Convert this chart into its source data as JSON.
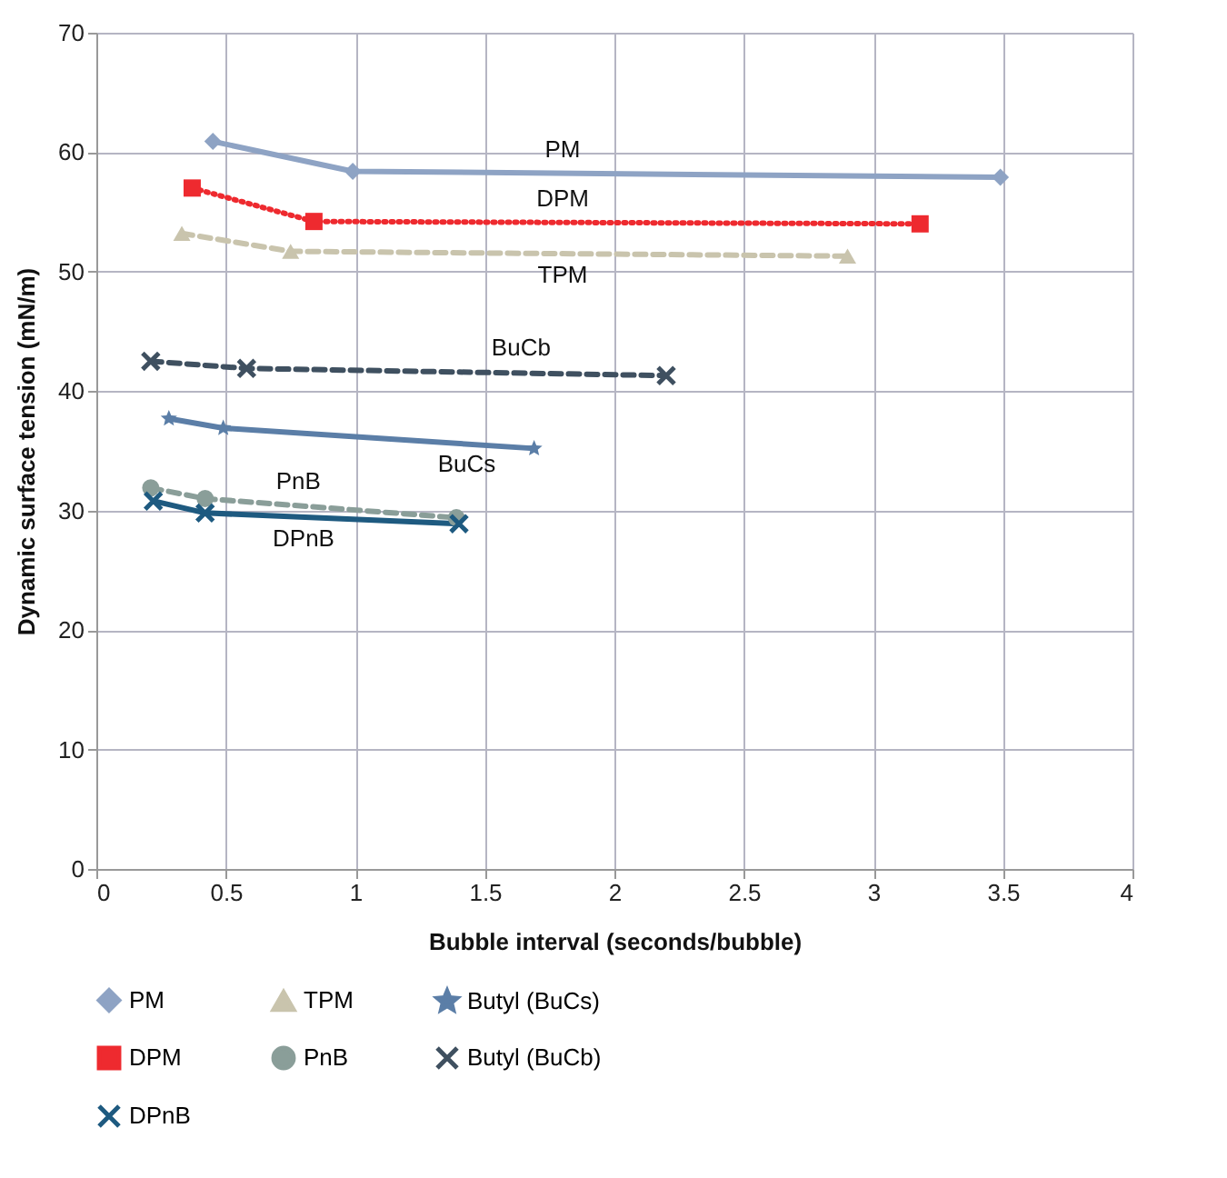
{
  "chart_data": {
    "type": "line",
    "xlabel": "Bubble interval (seconds/bubble)",
    "ylabel": "Dynamic surface tension (mN/m)",
    "xlim": [
      0,
      4
    ],
    "xticks": [
      0,
      0.5,
      1,
      1.5,
      2,
      2.5,
      3,
      3.5,
      4
    ],
    "ylim": [
      0,
      70
    ],
    "yticks": [
      0,
      10,
      20,
      30,
      40,
      50,
      60,
      70
    ],
    "grid": true,
    "legend": "bottom",
    "series": [
      {
        "name": "PM",
        "color": "#8ea3c4",
        "marker": "diamond",
        "line_style": "solid",
        "x": [
          0.45,
          0.99,
          3.49
        ],
        "values": [
          60.9,
          58.4,
          57.9
        ]
      },
      {
        "name": "TPM",
        "color": "#c9c4ad",
        "marker": "triangle",
        "line_style": "dashed",
        "x": [
          0.33,
          0.75,
          2.9
        ],
        "values": [
          53.2,
          51.7,
          51.3
        ]
      },
      {
        "name": "Butyl (BuCs)",
        "color": "#5b7ea7",
        "marker": "star",
        "line_style": "solid",
        "x": [
          0.28,
          0.49,
          1.69
        ],
        "values": [
          37.7,
          36.9,
          35.2
        ]
      },
      {
        "name": "DPM",
        "color": "#ee2a2f",
        "marker": "square",
        "line_style": "dotted",
        "x": [
          0.37,
          0.84,
          3.18
        ],
        "values": [
          57.0,
          54.2,
          54.0
        ]
      },
      {
        "name": "PnB",
        "color": "#8a9e99",
        "marker": "circle",
        "line_style": "dashed",
        "x": [
          0.21,
          0.42,
          1.39
        ],
        "values": [
          31.9,
          31.0,
          29.4
        ]
      },
      {
        "name": "Butyl (BuCb)",
        "color": "#3f5060",
        "marker": "cross",
        "line_style": "dashed",
        "x": [
          0.21,
          0.58,
          2.2
        ],
        "values": [
          42.5,
          41.9,
          41.3
        ]
      },
      {
        "name": "DPnB",
        "color": "#1e5a80",
        "marker": "cross",
        "line_style": "solid",
        "x": [
          0.22,
          0.42,
          1.4
        ],
        "values": [
          30.8,
          29.8,
          28.9
        ]
      }
    ],
    "annotations": [
      {
        "text": "PM",
        "x": 1.8,
        "y": 58.2
      },
      {
        "text": "DPM",
        "x": 1.8,
        "y": 54.1
      },
      {
        "text": "TPM",
        "x": 1.8,
        "y": 51.5
      },
      {
        "text": "BuCb",
        "x": 1.64,
        "y": 41.6
      },
      {
        "text": "BuCs",
        "x": 1.43,
        "y": 35.7
      },
      {
        "text": "PnB",
        "x": 0.78,
        "y": 30.4
      },
      {
        "text": "DPnB",
        "x": 0.8,
        "y": 29.45
      }
    ]
  }
}
